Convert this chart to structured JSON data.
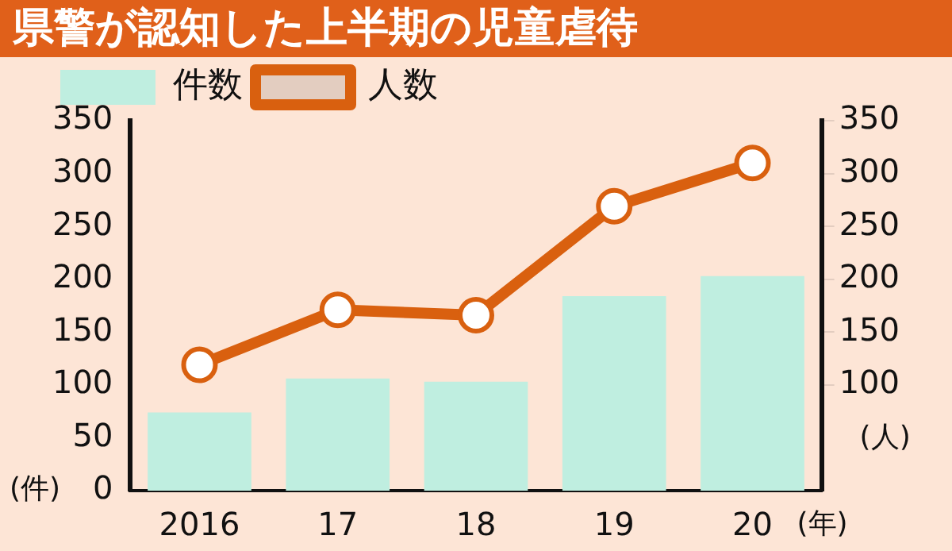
{
  "chart_data": {
    "type": "bar",
    "title": "県警が認知した上半期の児童虐待",
    "categories": [
      "2016",
      "17",
      "18",
      "19",
      "20"
    ],
    "xlabel": "(年)",
    "ylabel": "(件)",
    "y2label": "(人)",
    "series": [
      {
        "name": "件数",
        "type": "bar",
        "color": "#bfeee0",
        "values": [
          74,
          106,
          103,
          184,
          203
        ]
      },
      {
        "name": "人数",
        "type": "line",
        "axis": "y2",
        "color": "#d9600f",
        "values": [
          119,
          171,
          166,
          269,
          310
        ]
      }
    ],
    "ylim": [
      0,
      350
    ],
    "yticks": [
      0,
      50,
      100,
      150,
      200,
      250,
      300,
      350
    ],
    "y2lim": [
      0,
      350
    ],
    "y2ticks": [
      100,
      150,
      200,
      250,
      300,
      350
    ],
    "marker": "circle",
    "line_style": "solid",
    "legend": "top left",
    "grid": false
  }
}
